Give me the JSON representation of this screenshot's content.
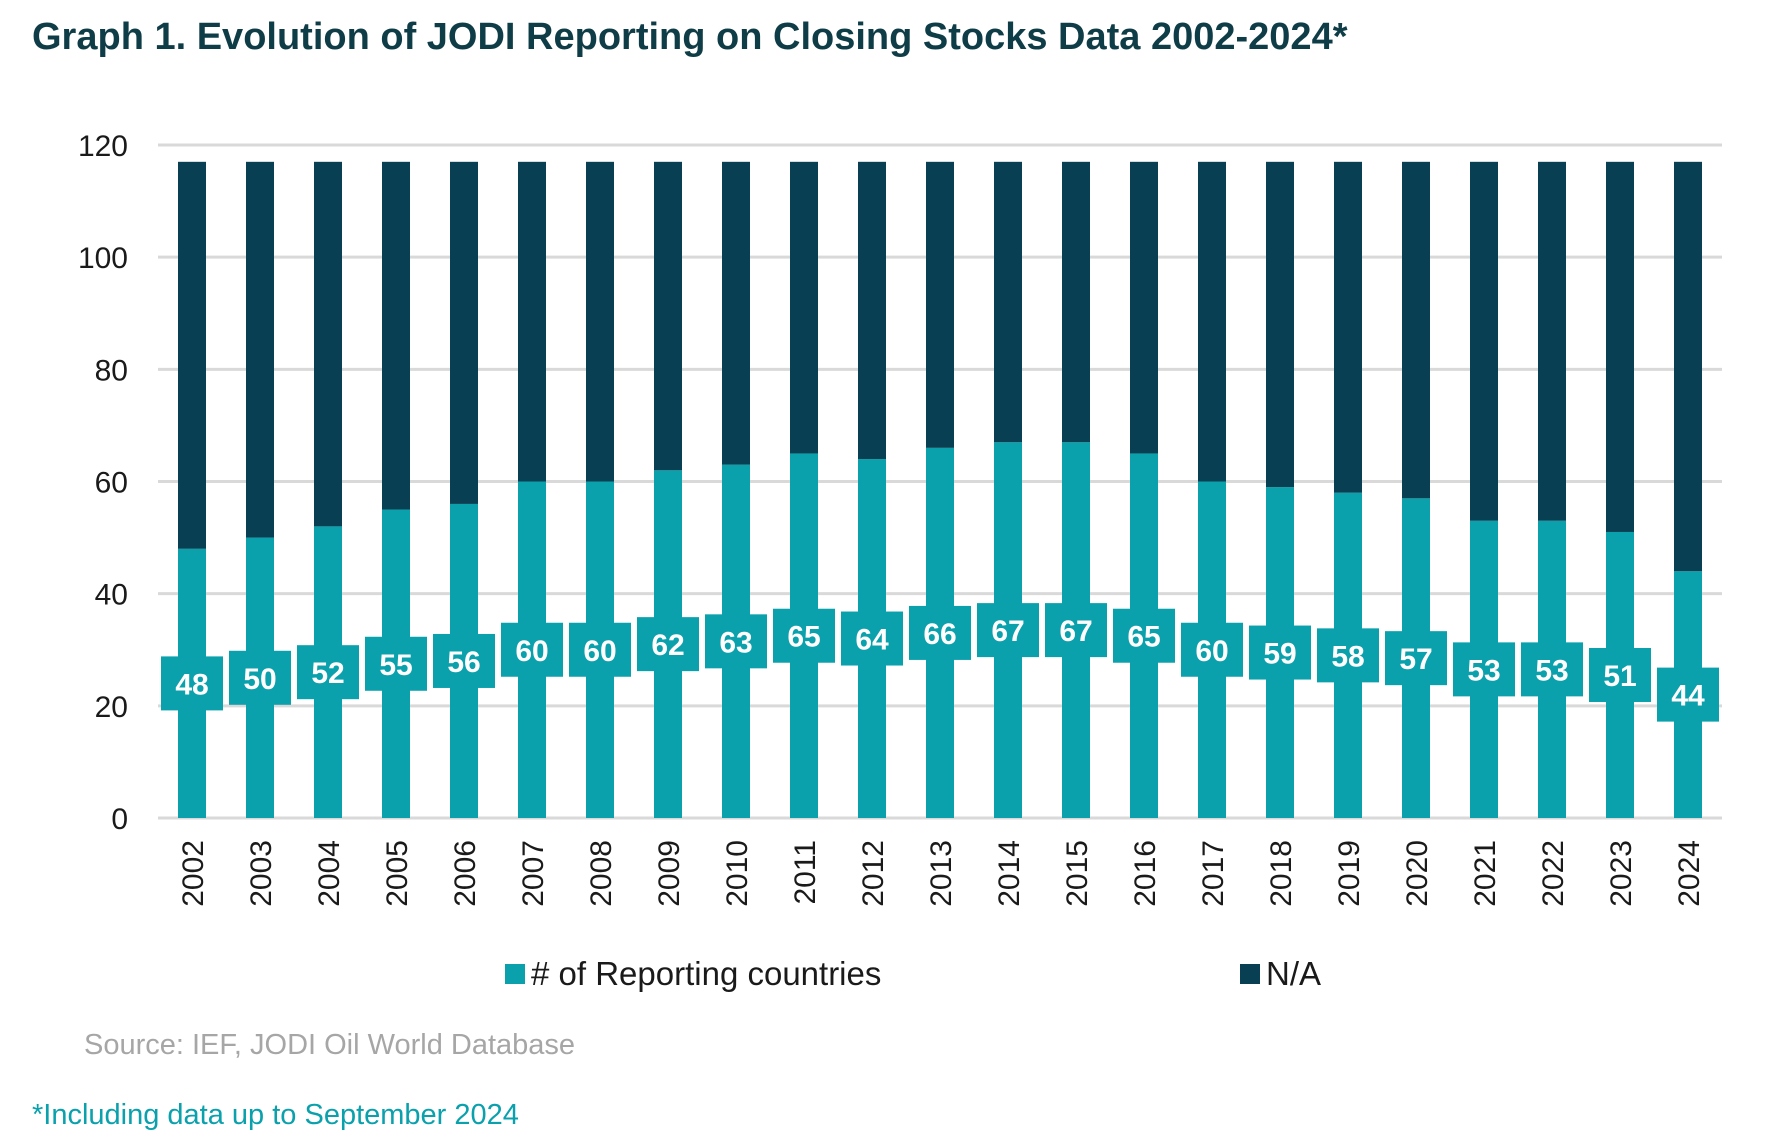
{
  "title": "Graph 1. Evolution of JODI Reporting on Closing Stocks Data 2002-2024*",
  "source": "Source: IEF, JODI Oil World Database",
  "footnote": "*Including data up to September 2024",
  "colors": {
    "reporting": "#0aa1ad",
    "na": "#083f52",
    "grid": "#d9d9d9",
    "label_text": "#ffffff",
    "title": "#0f3d47"
  },
  "chart_data": {
    "type": "bar",
    "stacked": true,
    "categories": [
      "2002",
      "2003",
      "2004",
      "2005",
      "2006",
      "2007",
      "2008",
      "2009",
      "2010",
      "2011",
      "2012",
      "2013",
      "2014",
      "2015",
      "2016",
      "2017",
      "2018",
      "2019",
      "2020",
      "2021",
      "2022",
      "2023",
      "2024"
    ],
    "series": [
      {
        "name": "# of Reporting countries",
        "color": "#0aa1ad",
        "values": [
          48,
          50,
          52,
          55,
          56,
          60,
          60,
          62,
          63,
          65,
          64,
          66,
          67,
          67,
          65,
          60,
          59,
          58,
          57,
          53,
          53,
          51,
          44
        ],
        "data_labels": true
      },
      {
        "name": "N/A",
        "color": "#083f52",
        "values": [
          69,
          67,
          65,
          62,
          61,
          57,
          57,
          55,
          54,
          52,
          53,
          51,
          50,
          50,
          52,
          57,
          58,
          59,
          60,
          64,
          64,
          66,
          73
        ],
        "data_labels": false
      }
    ],
    "yticks": [
      "0",
      "20",
      "40",
      "60",
      "80",
      "100",
      "120"
    ],
    "ylim": [
      0,
      120
    ],
    "grid": true,
    "legend": "bottom",
    "xtick_rotation": "vertical"
  }
}
